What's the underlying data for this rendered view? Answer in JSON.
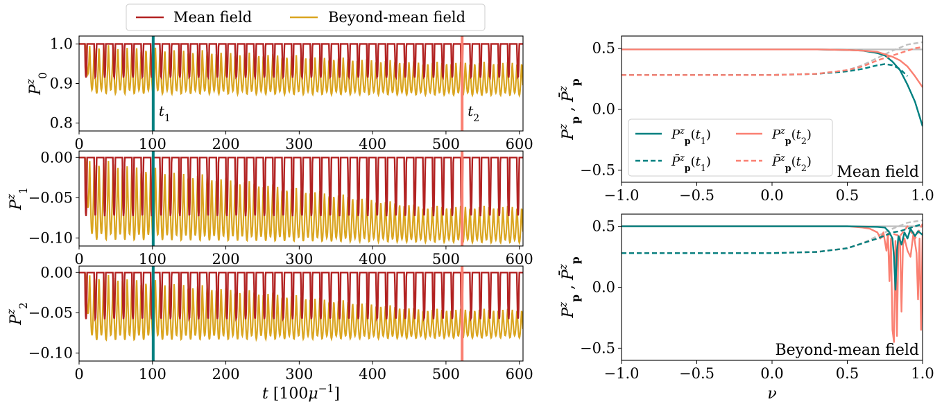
{
  "legend_top": {
    "items": [
      "Mean field",
      "Beyond-mean field"
    ]
  },
  "colors": {
    "mean_field": "#b22222",
    "beyond_mean_field": "#daa520",
    "t1": "#008080",
    "t2": "#fa8072",
    "grey": "#c0c0c0"
  },
  "chart_data": [
    {
      "type": "line",
      "ylabel": "P_0^z",
      "xlim": [
        0,
        605
      ],
      "ylim": [
        0.78,
        1.02
      ],
      "xticks": [
        0,
        100,
        200,
        300,
        400,
        500,
        600
      ],
      "yticks": [
        "0.8",
        "0.9",
        "1.0"
      ],
      "ytick_values": [
        0.8,
        0.9,
        1.0
      ],
      "markers": [
        {
          "label": "t_1",
          "x": 101
        },
        {
          "label": "t_2",
          "x": 522
        }
      ],
      "series": [
        {
          "name": "Mean field",
          "baseline": 1.0,
          "dip_min": 0.915,
          "period": 12.8,
          "start": 8
        },
        {
          "name": "Beyond-mean field",
          "baseline": 1.0,
          "dip_min_start": 0.875,
          "dip_min_end": 0.87,
          "top_end": 0.955,
          "period": 6.4,
          "start": 8
        }
      ]
    },
    {
      "type": "line",
      "ylabel": "P_1^z",
      "xlim": [
        0,
        605
      ],
      "ylim": [
        -0.11,
        0.008
      ],
      "xticks": [
        0,
        100,
        200,
        300,
        400,
        500,
        600
      ],
      "yticks": [
        "0.00",
        "−0.05",
        "−0.10"
      ],
      "ytick_values": [
        0.0,
        -0.05,
        -0.1
      ],
      "markers": [
        {
          "x": 101
        },
        {
          "x": 522
        }
      ],
      "series": [
        {
          "name": "Mean field",
          "baseline": 0.0,
          "dip_min": -0.073,
          "period": 12.8,
          "start": 8
        },
        {
          "name": "Beyond-mean field",
          "baseline": 0.0,
          "dip_min_start": -0.102,
          "dip_min_end": -0.106,
          "top_end": -0.06,
          "period": 6.4,
          "start": 8
        }
      ]
    },
    {
      "type": "line",
      "ylabel": "P_2^z",
      "xlabel": "t [100μ⁻¹]",
      "xlim": [
        0,
        605
      ],
      "ylim": [
        -0.11,
        0.008
      ],
      "xticks": [
        0,
        100,
        200,
        300,
        400,
        500,
        600
      ],
      "yticks": [
        "0.00",
        "−0.05",
        "−0.10"
      ],
      "ytick_values": [
        0.0,
        -0.05,
        -0.1
      ],
      "markers": [
        {
          "x": 101
        },
        {
          "x": 522
        }
      ],
      "series": [
        {
          "name": "Mean field",
          "baseline": 0.0,
          "dip_min": -0.058,
          "period": 12.8,
          "start": 8
        },
        {
          "name": "Beyond-mean field",
          "baseline": 0.0,
          "dip_min_start": -0.084,
          "dip_min_end": -0.081,
          "top_end": -0.045,
          "period": 6.4,
          "start": 8
        }
      ]
    },
    {
      "type": "line",
      "panel_label": "Mean field",
      "ylabel": "P_p^z , P̄_p^z",
      "xlim": [
        -1.0,
        1.0
      ],
      "ylim": [
        -0.6,
        0.6
      ],
      "xticks": [
        "−1.0",
        "−0.5",
        "0.0",
        "0.5",
        "1.0"
      ],
      "xtick_values": [
        -1.0,
        -0.5,
        0.0,
        0.5,
        1.0
      ],
      "yticks": [
        "0.5",
        "0.0",
        "−0.5"
      ],
      "ytick_values": [
        0.5,
        0.0,
        -0.5
      ],
      "legend": {
        "items": [
          {
            "label": "P_p^z(t_1)",
            "dashed": false,
            "color": "#008080"
          },
          {
            "label": "P_p^z(t_2)",
            "dashed": false,
            "color": "#fa8072"
          },
          {
            "label": "P̄_p^z(t_1)",
            "dashed": true,
            "color": "#008080"
          },
          {
            "label": "P̄_p^z(t_2)",
            "dashed": true,
            "color": "#fa8072"
          }
        ]
      },
      "series": [
        {
          "name": "initial solid",
          "color": "#c0c0c0",
          "dashed": false,
          "x": [
            -1.0,
            1.0
          ],
          "y": [
            0.49,
            0.49
          ]
        },
        {
          "name": "initial dashed",
          "color": "#c0c0c0",
          "dashed": true,
          "x": [
            -1.0,
            0.0,
            0.3,
            0.5,
            0.6,
            0.7,
            0.8,
            0.9,
            1.0
          ],
          "y": [
            0.28,
            0.28,
            0.29,
            0.32,
            0.36,
            0.42,
            0.48,
            0.53,
            0.55
          ]
        },
        {
          "name": "P_p^z(t_1)",
          "color": "#008080",
          "dashed": false,
          "x": [
            -1.0,
            0.0,
            0.3,
            0.5,
            0.6,
            0.7,
            0.75,
            0.8,
            0.85,
            0.9,
            0.95,
            1.0
          ],
          "y": [
            0.49,
            0.49,
            0.49,
            0.485,
            0.48,
            0.46,
            0.44,
            0.39,
            0.32,
            0.2,
            0.06,
            -0.14
          ]
        },
        {
          "name": "P̄_p^z(t_1)",
          "color": "#008080",
          "dashed": true,
          "x": [
            -1.0,
            0.0,
            0.3,
            0.5,
            0.6,
            0.7,
            0.75,
            0.8,
            0.85,
            0.9
          ],
          "y": [
            0.28,
            0.28,
            0.29,
            0.31,
            0.33,
            0.36,
            0.37,
            0.36,
            0.33,
            0.27
          ]
        },
        {
          "name": "P_p^z(t_2)",
          "color": "#fa8072",
          "dashed": false,
          "x": [
            -1.0,
            0.0,
            0.3,
            0.5,
            0.6,
            0.7,
            0.8,
            0.85,
            0.9,
            0.95,
            1.0
          ],
          "y": [
            0.49,
            0.49,
            0.49,
            0.485,
            0.48,
            0.47,
            0.43,
            0.4,
            0.35,
            0.27,
            0.18
          ]
        },
        {
          "name": "P̄_p^z(t_2)",
          "color": "#fa8072",
          "dashed": true,
          "x": [
            -1.0,
            0.0,
            0.3,
            0.5,
            0.6,
            0.7,
            0.8,
            0.9,
            0.95,
            1.0
          ],
          "y": [
            0.28,
            0.28,
            0.29,
            0.32,
            0.35,
            0.4,
            0.44,
            0.48,
            0.5,
            0.51
          ]
        }
      ]
    },
    {
      "type": "line",
      "panel_label": "Beyond-mean field",
      "ylabel": "P_p^z , P̄_p^z",
      "xlabel": "ν",
      "xlim": [
        -1.0,
        1.0
      ],
      "ylim": [
        -0.6,
        0.6
      ],
      "xticks": [
        "−1.0",
        "−0.5",
        "0.0",
        "0.5",
        "1.0"
      ],
      "xtick_values": [
        -1.0,
        -0.5,
        0.0,
        0.5,
        1.0
      ],
      "yticks": [
        "0.5",
        "0.0",
        "−0.5"
      ],
      "ytick_values": [
        0.5,
        0.0,
        -0.5
      ],
      "series": [
        {
          "name": "initial solid",
          "color": "#c0c0c0",
          "dashed": false,
          "x": [
            -1.0,
            1.0
          ],
          "y": [
            0.5,
            0.5
          ]
        },
        {
          "name": "initial dashed",
          "color": "#c0c0c0",
          "dashed": true,
          "x": [
            -1.0,
            0.0,
            0.3,
            0.5,
            0.6,
            0.7,
            0.8,
            0.9,
            1.0
          ],
          "y": [
            0.28,
            0.28,
            0.29,
            0.32,
            0.36,
            0.42,
            0.48,
            0.53,
            0.55
          ]
        },
        {
          "name": "P_p^z(t_2)",
          "color": "#fa8072",
          "dashed": false,
          "x": [
            -1.0,
            0.5,
            0.6,
            0.65,
            0.7,
            0.72,
            0.74,
            0.76,
            0.77,
            0.78,
            0.79,
            0.8,
            0.81,
            0.82,
            0.83,
            0.84,
            0.85,
            0.86,
            0.87,
            0.88,
            0.9,
            0.92,
            0.94,
            0.96,
            0.97,
            0.98,
            0.99,
            1.0
          ],
          "y": [
            0.5,
            0.5,
            0.49,
            0.48,
            0.45,
            0.4,
            0.45,
            0.3,
            0.44,
            0.05,
            0.4,
            -0.35,
            -0.45,
            0.38,
            -0.4,
            0.4,
            0.42,
            -0.2,
            0.35,
            0.4,
            0.3,
            0.25,
            0.45,
            0.28,
            -0.1,
            0.4,
            -0.35,
            0.45
          ]
        },
        {
          "name": "P̄_p^z(t_2)",
          "color": "#fa8072",
          "dashed": true,
          "x": [
            -1.0,
            0.0,
            0.3,
            0.5,
            0.6,
            0.7,
            0.8,
            0.85,
            0.9,
            0.95,
            1.0
          ],
          "y": [
            0.28,
            0.28,
            0.29,
            0.32,
            0.36,
            0.4,
            0.44,
            0.42,
            0.5,
            0.4,
            0.52
          ]
        },
        {
          "name": "P_p^z(t_1)",
          "color": "#008080",
          "dashed": false,
          "x": [
            -1.0,
            0.5,
            0.7,
            0.75,
            0.78,
            0.8,
            0.81,
            0.82,
            0.83,
            0.84,
            0.86,
            0.88,
            0.9,
            0.92,
            0.95,
            0.97,
            1.0
          ],
          "y": [
            0.5,
            0.5,
            0.495,
            0.49,
            0.45,
            0.4,
            0.25,
            -0.02,
            0.3,
            0.42,
            0.35,
            0.45,
            0.4,
            0.48,
            0.42,
            0.46,
            0.43
          ]
        },
        {
          "name": "P̄_p^z(t_1)",
          "color": "#008080",
          "dashed": true,
          "x": [
            -1.0,
            0.0,
            0.3,
            0.5,
            0.6,
            0.7,
            0.8,
            0.85,
            0.9,
            0.95,
            1.0
          ],
          "y": [
            0.28,
            0.28,
            0.29,
            0.32,
            0.36,
            0.4,
            0.45,
            0.46,
            0.48,
            0.5,
            0.52
          ]
        }
      ]
    }
  ]
}
